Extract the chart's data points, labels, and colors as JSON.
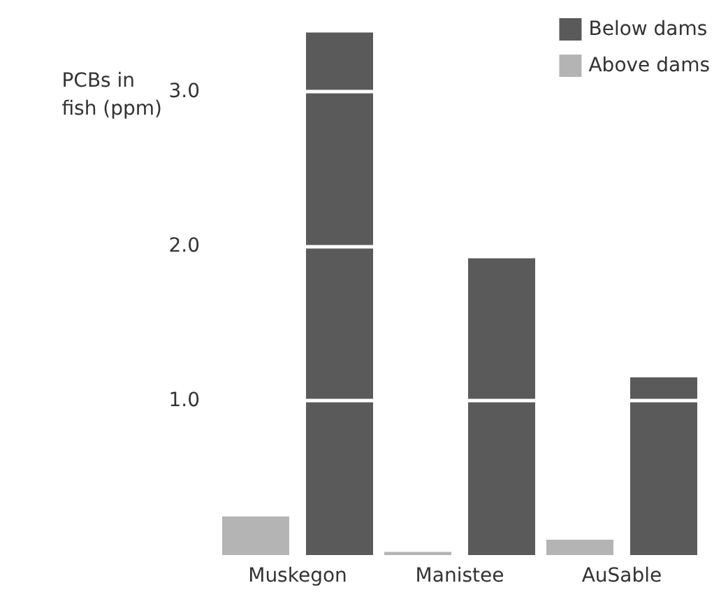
{
  "chart_data": {
    "type": "bar",
    "ylabel": "PCBs in fish (ppm)",
    "categories": [
      "Muskegon",
      "Manistee",
      "AuSable"
    ],
    "series": [
      {
        "name": "Above dams",
        "color": "#b4b4b4",
        "values": [
          0.25,
          0.02,
          0.1
        ]
      },
      {
        "name": "Below dams",
        "color": "#5a5a5a",
        "values": [
          3.38,
          1.92,
          1.15
        ]
      }
    ],
    "ylim": [
      0,
      3.5
    ],
    "yticks": [
      {
        "value": 1,
        "label": "1.0"
      },
      {
        "value": 2,
        "label": "2.0"
      },
      {
        "value": 3,
        "label": "3.0"
      }
    ],
    "grid": "y",
    "legend": "top right"
  }
}
